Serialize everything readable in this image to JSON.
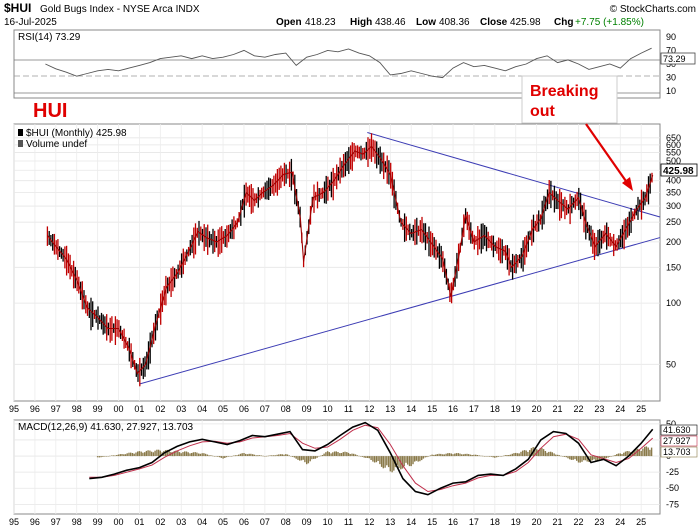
{
  "header": {
    "symbol": "$HUI",
    "name": "Gold Bugs Index - NYSE Arca INDX",
    "date": "16-Jul-2025",
    "open_label": "Open",
    "open": "418.23",
    "high_label": "High",
    "high": "438.46",
    "low_label": "Low",
    "low": "408.36",
    "close_label": "Close",
    "close": "425.98",
    "chg_label": "Chg",
    "chg": "+7.75 (+1.85%)",
    "brand": "© StockCharts.com"
  },
  "annotations": {
    "hui_label": "HUI",
    "breaking_line1": "Breaking",
    "breaking_line2": "out"
  },
  "chart_data": [
    {
      "type": "line",
      "title": "RSI(14) 73.29",
      "ylim": [
        0,
        100
      ],
      "y_ticks": [
        "90",
        "70",
        "50",
        "30",
        "10"
      ],
      "reference_lines": [
        70,
        50,
        30
      ],
      "last_value": 73.29,
      "last_label": "73.29",
      "series": [
        {
          "name": "RSI(14)",
          "x": [
            1996.5,
            1997,
            1997.5,
            1998,
            1998.5,
            1999,
            1999.5,
            2000,
            2000.5,
            2001,
            2001.5,
            2002,
            2002.5,
            2003,
            2003.5,
            2004,
            2004.5,
            2005,
            2005.5,
            2006,
            2006.5,
            2007,
            2007.5,
            2008,
            2008.5,
            2009,
            2009.5,
            2010,
            2010.5,
            2011,
            2011.5,
            2012,
            2012.5,
            2013,
            2013.5,
            2014,
            2014.5,
            2015,
            2015.5,
            2016,
            2016.5,
            2017,
            2017.5,
            2018,
            2018.5,
            2019,
            2019.5,
            2020,
            2020.5,
            2021,
            2021.5,
            2022,
            2022.5,
            2023,
            2023.5,
            2024,
            2024.5,
            2025,
            2025.5
          ],
          "values": [
            50,
            43,
            38,
            32,
            36,
            40,
            42,
            40,
            44,
            48,
            52,
            58,
            60,
            62,
            58,
            62,
            58,
            60,
            64,
            70,
            62,
            60,
            64,
            66,
            48,
            60,
            64,
            70,
            68,
            72,
            66,
            62,
            52,
            34,
            36,
            40,
            36,
            32,
            30,
            44,
            52,
            46,
            48,
            44,
            40,
            46,
            50,
            58,
            62,
            52,
            56,
            50,
            42,
            46,
            50,
            44,
            58,
            66,
            73.29
          ]
        }
      ]
    },
    {
      "type": "line",
      "title": "$HUI (Monthly) 425.98",
      "subtitle": "Volume undef",
      "y_scale": "log",
      "ylim": [
        33,
        760
      ],
      "y_ticks": [
        "650",
        "600",
        "550",
        "500",
        "450",
        "400",
        "350",
        "300",
        "250",
        "200",
        "150",
        "100",
        "50"
      ],
      "x_ticks": [
        "95",
        "96",
        "97",
        "98",
        "99",
        "00",
        "01",
        "02",
        "03",
        "04",
        "05",
        "06",
        "07",
        "08",
        "09",
        "10",
        "11",
        "12",
        "13",
        "14",
        "15",
        "16",
        "17",
        "18",
        "19",
        "20",
        "21",
        "22",
        "23",
        "24",
        "25"
      ],
      "last_value": 425.98,
      "last_label": "425.98",
      "series": [
        {
          "name": "$HUI",
          "x": [
            1996.6,
            1997,
            1997.5,
            1998,
            1998.5,
            1999,
            1999.5,
            2000,
            2000.5,
            2000.9,
            2001.3,
            2001.8,
            2002.3,
            2002.8,
            2003.3,
            2003.8,
            2004.2,
            2004.7,
            2005.2,
            2005.7,
            2006.1,
            2006.5,
            2006.9,
            2007.4,
            2007.9,
            2008.3,
            2008.7,
            2008.85,
            2009.3,
            2009.8,
            2010.3,
            2010.8,
            2011.3,
            2011.7,
            2012.1,
            2012.5,
            2013.0,
            2013.5,
            2014.0,
            2014.5,
            2015.0,
            2015.5,
            2015.9,
            2016.3,
            2016.6,
            2017.0,
            2017.5,
            2018.0,
            2018.5,
            2018.8,
            2019.3,
            2019.8,
            2020.2,
            2020.6,
            2021.0,
            2021.5,
            2022.0,
            2022.4,
            2022.8,
            2023.3,
            2023.8,
            2024.3,
            2024.8,
            2025.2,
            2025.55
          ],
          "values": [
            215,
            190,
            165,
            130,
            95,
            85,
            75,
            75,
            60,
            45,
            50,
            80,
            120,
            140,
            175,
            225,
            210,
            200,
            215,
            250,
            350,
            320,
            350,
            380,
            430,
            440,
            260,
            160,
            330,
            350,
            400,
            480,
            560,
            540,
            590,
            520,
            430,
            250,
            220,
            230,
            195,
            165,
            108,
            175,
            270,
            200,
            215,
            190,
            180,
            150,
            170,
            230,
            260,
            350,
            320,
            290,
            330,
            240,
            190,
            220,
            190,
            235,
            290,
            330,
            425.98
          ]
        }
      ],
      "trendlines": [
        {
          "from": [
            2001.0,
            40
          ],
          "to": [
            2025.9,
            210
          ]
        },
        {
          "from": [
            2011.9,
            690
          ],
          "to": [
            2025.9,
            265
          ]
        }
      ]
    },
    {
      "type": "line",
      "title": "MACD(12,26,9) 41.630, 27.927, 13.703",
      "ylim": [
        -90,
        56
      ],
      "y_ticks": [
        "50",
        "25",
        "0",
        "-25",
        "-50",
        "-75"
      ],
      "x_ticks": [
        "95",
        "96",
        "97",
        "98",
        "99",
        "00",
        "01",
        "02",
        "03",
        "04",
        "05",
        "06",
        "07",
        "08",
        "09",
        "10",
        "11",
        "12",
        "13",
        "14",
        "15",
        "16",
        "17",
        "18",
        "19",
        "20",
        "21",
        "22",
        "23",
        "24",
        "25"
      ],
      "last_labels": [
        "41.630",
        "27.927",
        "13.703"
      ],
      "series": [
        {
          "name": "MACD",
          "x": [
            1998.6,
            1999.2,
            1999.8,
            2000.4,
            2001,
            2001.6,
            2002.2,
            2002.8,
            2003.4,
            2004,
            2004.6,
            2005.2,
            2005.8,
            2006.4,
            2007,
            2007.6,
            2008.2,
            2008.8,
            2009.4,
            2010,
            2010.6,
            2011.2,
            2011.8,
            2012.4,
            2013,
            2013.6,
            2014.2,
            2014.8,
            2015.4,
            2016,
            2016.6,
            2017.2,
            2017.8,
            2018.4,
            2019,
            2019.6,
            2020.2,
            2020.8,
            2021.4,
            2022,
            2022.6,
            2023.2,
            2023.8,
            2024.4,
            2025,
            2025.55
          ],
          "values": [
            -35,
            -33,
            -28,
            -22,
            -18,
            -10,
            5,
            15,
            22,
            26,
            22,
            18,
            24,
            32,
            30,
            34,
            38,
            10,
            8,
            18,
            32,
            45,
            52,
            40,
            5,
            -35,
            -55,
            -60,
            -50,
            -42,
            -40,
            -30,
            -28,
            -30,
            -20,
            -5,
            25,
            38,
            35,
            20,
            -10,
            -5,
            -15,
            0,
            20,
            41.63
          ]
        },
        {
          "name": "Signal",
          "x": [
            1998.6,
            1999.2,
            1999.8,
            2000.4,
            2001,
            2001.6,
            2002.2,
            2002.8,
            2003.4,
            2004,
            2004.6,
            2005.2,
            2005.8,
            2006.4,
            2007,
            2007.6,
            2008.2,
            2008.8,
            2009.4,
            2010,
            2010.6,
            2011.2,
            2011.8,
            2012.4,
            2013,
            2013.6,
            2014.2,
            2014.8,
            2015.4,
            2016,
            2016.6,
            2017.2,
            2017.8,
            2018.4,
            2019,
            2019.6,
            2020.2,
            2020.8,
            2021.4,
            2022,
            2022.6,
            2023.2,
            2023.8,
            2024.4,
            2025,
            2025.55
          ],
          "values": [
            -33,
            -33,
            -30,
            -25,
            -20,
            -14,
            -2,
            8,
            16,
            22,
            23,
            20,
            22,
            28,
            30,
            32,
            35,
            20,
            12,
            14,
            26,
            40,
            48,
            44,
            18,
            -15,
            -42,
            -55,
            -52,
            -46,
            -42,
            -34,
            -30,
            -30,
            -24,
            -10,
            12,
            30,
            34,
            26,
            2,
            -4,
            -10,
            -4,
            12,
            27.927
          ]
        },
        {
          "name": "Histogram",
          "x": [
            1999,
            2000,
            2001,
            2002,
            2003,
            2004,
            2005,
            2006,
            2007,
            2008,
            2009,
            2010,
            2011,
            2012,
            2013,
            2014,
            2015,
            2016,
            2017,
            2018,
            2019,
            2020,
            2021,
            2022,
            2023,
            2024,
            2025.55
          ],
          "values": [
            -2,
            2,
            6,
            8,
            6,
            4,
            -3,
            4,
            0,
            3,
            -10,
            6,
            5,
            -4,
            -20,
            -12,
            2,
            4,
            2,
            -2,
            4,
            12,
            2,
            -8,
            -6,
            4,
            13.703
          ]
        }
      ]
    }
  ]
}
